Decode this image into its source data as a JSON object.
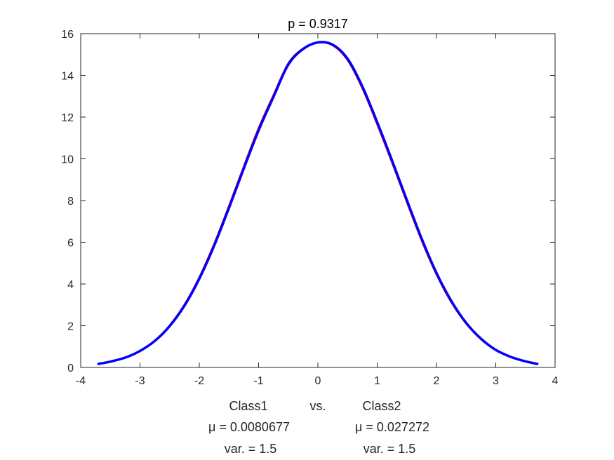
{
  "chart_data": {
    "type": "line",
    "title": "p = 0.9317",
    "xlim": [
      -4,
      4
    ],
    "ylim": [
      0,
      16
    ],
    "xticks": [
      -4,
      -3,
      -2,
      -1,
      0,
      1,
      2,
      3,
      4
    ],
    "yticks": [
      0,
      2,
      4,
      6,
      8,
      10,
      12,
      14,
      16
    ],
    "xtick_labels": [
      "-4",
      "-3",
      "-2",
      "-1",
      "0",
      "1",
      "2",
      "3",
      "4"
    ],
    "ytick_labels": [
      "0",
      "2",
      "4",
      "6",
      "8",
      "10",
      "12",
      "14",
      "16"
    ],
    "grid": false,
    "xlabel_lines": [
      [
        "Class1",
        "vs.",
        "Class2"
      ],
      [
        "μ = 0.0080677",
        "μ = 0.027272"
      ],
      [
        "var. = 1.5",
        "var. = 1.5"
      ]
    ],
    "series": [
      {
        "color": "#e00000",
        "x": [
          -3.7,
          -3.5,
          -3.25,
          -3.0,
          -2.75,
          -2.5,
          -2.25,
          -2.0,
          -1.75,
          -1.5,
          -1.25,
          -1.0,
          -0.75,
          -0.5,
          -0.25,
          0.0,
          0.25,
          0.5,
          0.75,
          1.0,
          1.25,
          1.5,
          1.75,
          2.0,
          2.25,
          2.5,
          2.75,
          3.0,
          3.25,
          3.5,
          3.7
        ],
        "y": [
          0.17,
          0.29,
          0.48,
          0.81,
          1.3,
          2.03,
          3.03,
          4.34,
          5.94,
          7.76,
          9.66,
          11.49,
          13.07,
          14.59,
          15.3,
          15.57,
          15.43,
          14.72,
          13.36,
          11.63,
          9.8,
          7.9,
          6.06,
          4.44,
          3.11,
          2.09,
          1.34,
          0.82,
          0.5,
          0.28,
          0.17
        ]
      },
      {
        "color": "#0000ff",
        "x": [
          -3.7,
          -3.5,
          -3.25,
          -3.0,
          -2.75,
          -2.5,
          -2.25,
          -2.0,
          -1.75,
          -1.5,
          -1.25,
          -1.0,
          -0.75,
          -0.5,
          -0.25,
          0.0,
          0.25,
          0.5,
          0.75,
          1.0,
          1.25,
          1.5,
          1.75,
          2.0,
          2.25,
          2.5,
          2.75,
          3.0,
          3.25,
          3.5,
          3.7
        ],
        "y": [
          0.17,
          0.28,
          0.47,
          0.79,
          1.27,
          1.98,
          2.96,
          4.25,
          5.83,
          7.64,
          9.53,
          11.36,
          12.96,
          14.51,
          15.26,
          15.58,
          15.47,
          14.8,
          13.47,
          11.76,
          9.93,
          8.03,
          6.18,
          4.53,
          3.19,
          2.14,
          1.38,
          0.84,
          0.51,
          0.29,
          0.17
        ]
      }
    ]
  }
}
